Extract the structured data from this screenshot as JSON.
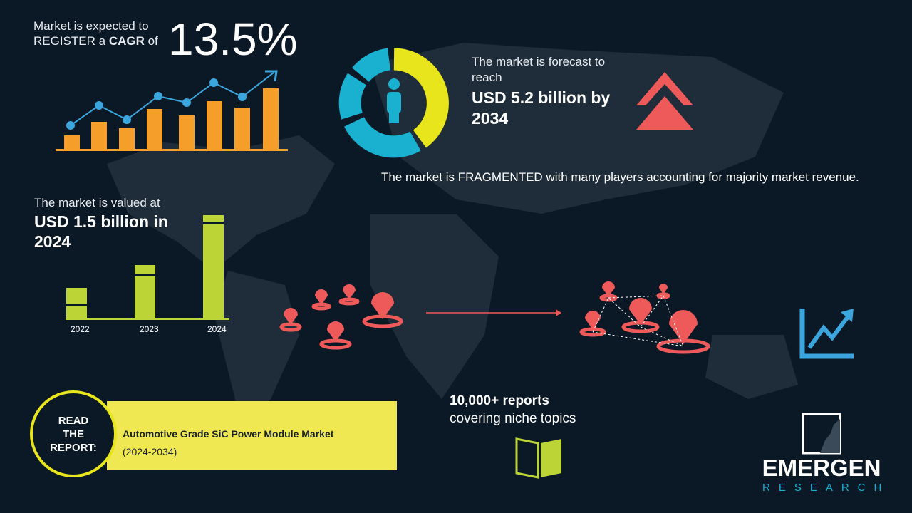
{
  "cagr": {
    "line1": "Market is expected to",
    "line2_pre": "REGISTER a ",
    "line2_bold": "CAGR",
    "line2_post": " of",
    "value": "13.5%"
  },
  "forecast": {
    "label": "The market is forecast to reach",
    "value": "USD 5.2 billion by 2034"
  },
  "fragmented": "The market is FRAGMENTED with many players accounting for majority market revenue.",
  "valued": {
    "label": "The market is valued at",
    "value": "USD 1.5 billion in 2024"
  },
  "year_chart": {
    "categories": [
      "2022",
      "2023",
      "2024"
    ]
  },
  "reports": {
    "line1": "10,000+ reports",
    "line2": "covering niche topics"
  },
  "read": {
    "badge": "READ THE REPORT:",
    "title": "Automotive Grade SiC Power Module Market",
    "years": "(2024-2034)"
  },
  "logo": {
    "name": "EMERGEN",
    "sub": "RESEARCH"
  },
  "colors": {
    "background": "#0b1825",
    "orange": "#f59e2a",
    "blue": "#3aa6dd",
    "yellow": "#e8e51c",
    "cyan": "#1ab0d0",
    "red": "#ee5a5a",
    "green": "#bcd435"
  }
}
